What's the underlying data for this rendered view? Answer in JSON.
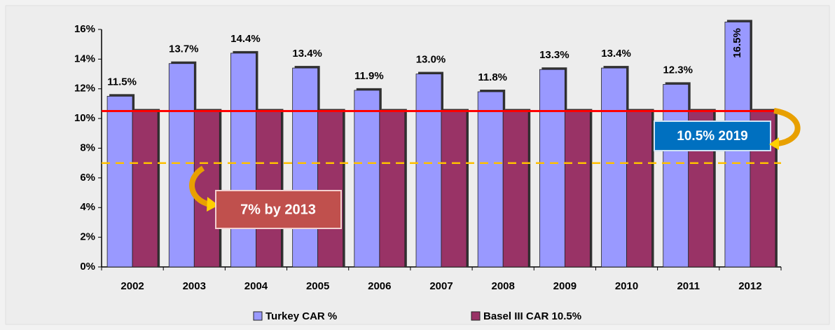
{
  "chart_data": {
    "type": "bar",
    "categories": [
      "2002",
      "2003",
      "2004",
      "2005",
      "2006",
      "2007",
      "2008",
      "2009",
      "2010",
      "2011",
      "2012"
    ],
    "series": [
      {
        "name": "Turkey CAR %",
        "color": "#9999ff",
        "values": [
          11.5,
          13.7,
          14.4,
          13.4,
          11.9,
          13.0,
          11.8,
          13.3,
          13.4,
          12.3,
          16.5
        ],
        "value_labels": [
          "11.5%",
          "13.7%",
          "14.4%",
          "13.4%",
          "11.9%",
          "13.0%",
          "11.8%",
          "13.3%",
          "13.4%",
          "12.3%",
          "16.5%"
        ]
      },
      {
        "name": "Basel III CAR 10.5%",
        "color": "#993366",
        "values": [
          10.5,
          10.5,
          10.5,
          10.5,
          10.5,
          10.5,
          10.5,
          10.5,
          10.5,
          10.5,
          10.5
        ]
      }
    ],
    "ylim": [
      0,
      16
    ],
    "yticks": [
      {
        "value": 0,
        "label": "0%"
      },
      {
        "value": 2,
        "label": "2%"
      },
      {
        "value": 4,
        "label": "4%"
      },
      {
        "value": 6,
        "label": "6%"
      },
      {
        "value": 8,
        "label": "8%"
      },
      {
        "value": 10,
        "label": "10%"
      },
      {
        "value": 12,
        "label": "12%"
      },
      {
        "value": 14,
        "label": "14%"
      },
      {
        "value": 16,
        "label": "16%"
      }
    ],
    "reference_lines": [
      {
        "value": 10.5,
        "color": "#ff0000",
        "dashed": false
      },
      {
        "value": 7,
        "color": "#ffc000",
        "dashed": true
      }
    ],
    "annotations": [
      "7% by 2013",
      "10.5% 2019"
    ],
    "legend": "bottom"
  }
}
